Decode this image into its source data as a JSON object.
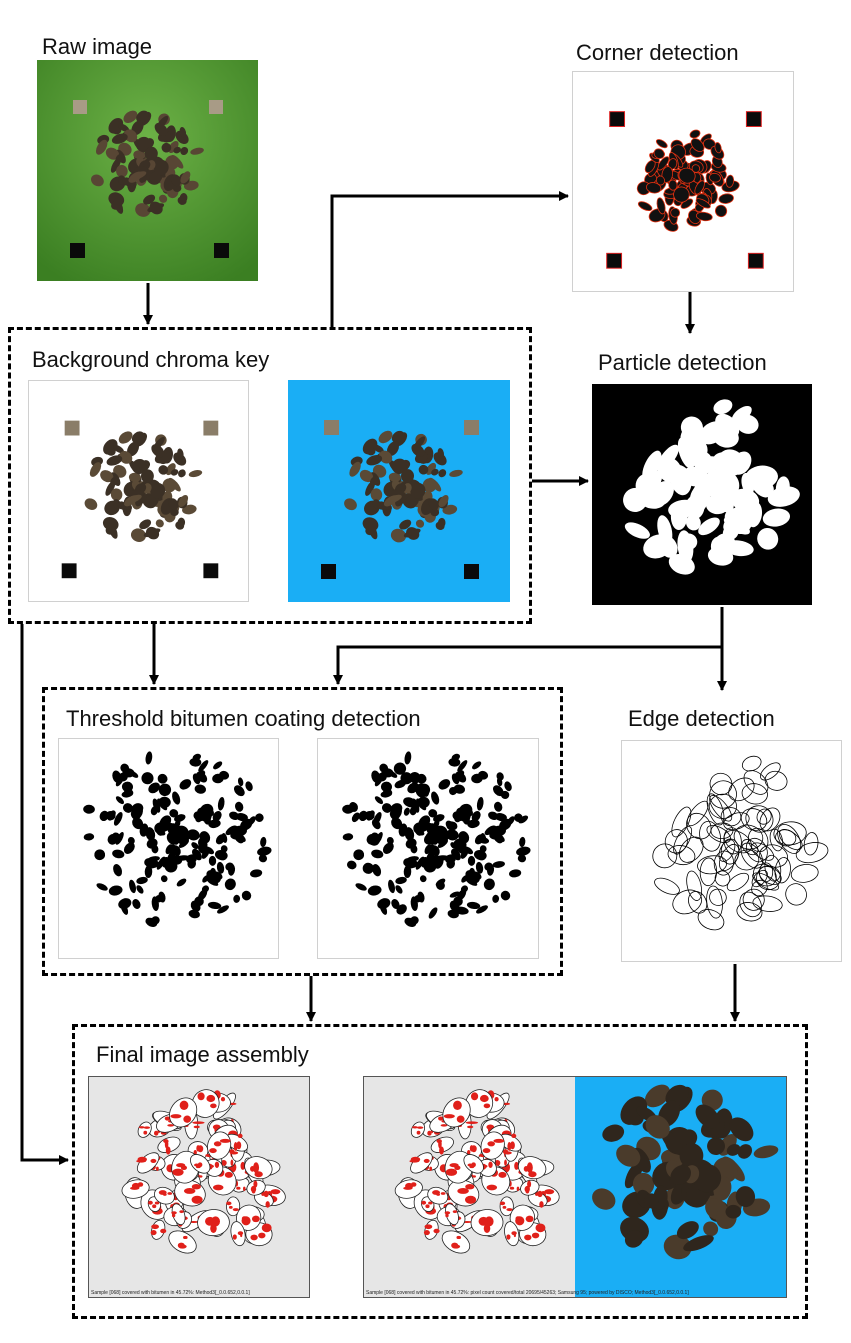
{
  "stages": {
    "raw": "Raw image",
    "corner": "Corner detection",
    "chroma": "Background chroma key",
    "particle": "Particle detection",
    "threshold": "Threshold bitumen coating detection",
    "edge": "Edge detection",
    "final": "Final image assembly"
  },
  "captions": {
    "final_left": "Sample [068] covered with bitumen in 45.72%: Method3[_0.0.652,0.0.1]",
    "final_right": "Sample [068] covered with bitumen in 45.72%: pixel count covered/total 20695/45263; Samsung 95; powered by DISCO; Method3[_0.0.652,0.0.1]"
  },
  "colors": {
    "green_bg": "#4f9a2f",
    "blue_bg": "#1aaef5",
    "particle_dark": "#3b3025",
    "coating_red": "#e0201a",
    "final_gray": "#e6e6e6"
  }
}
